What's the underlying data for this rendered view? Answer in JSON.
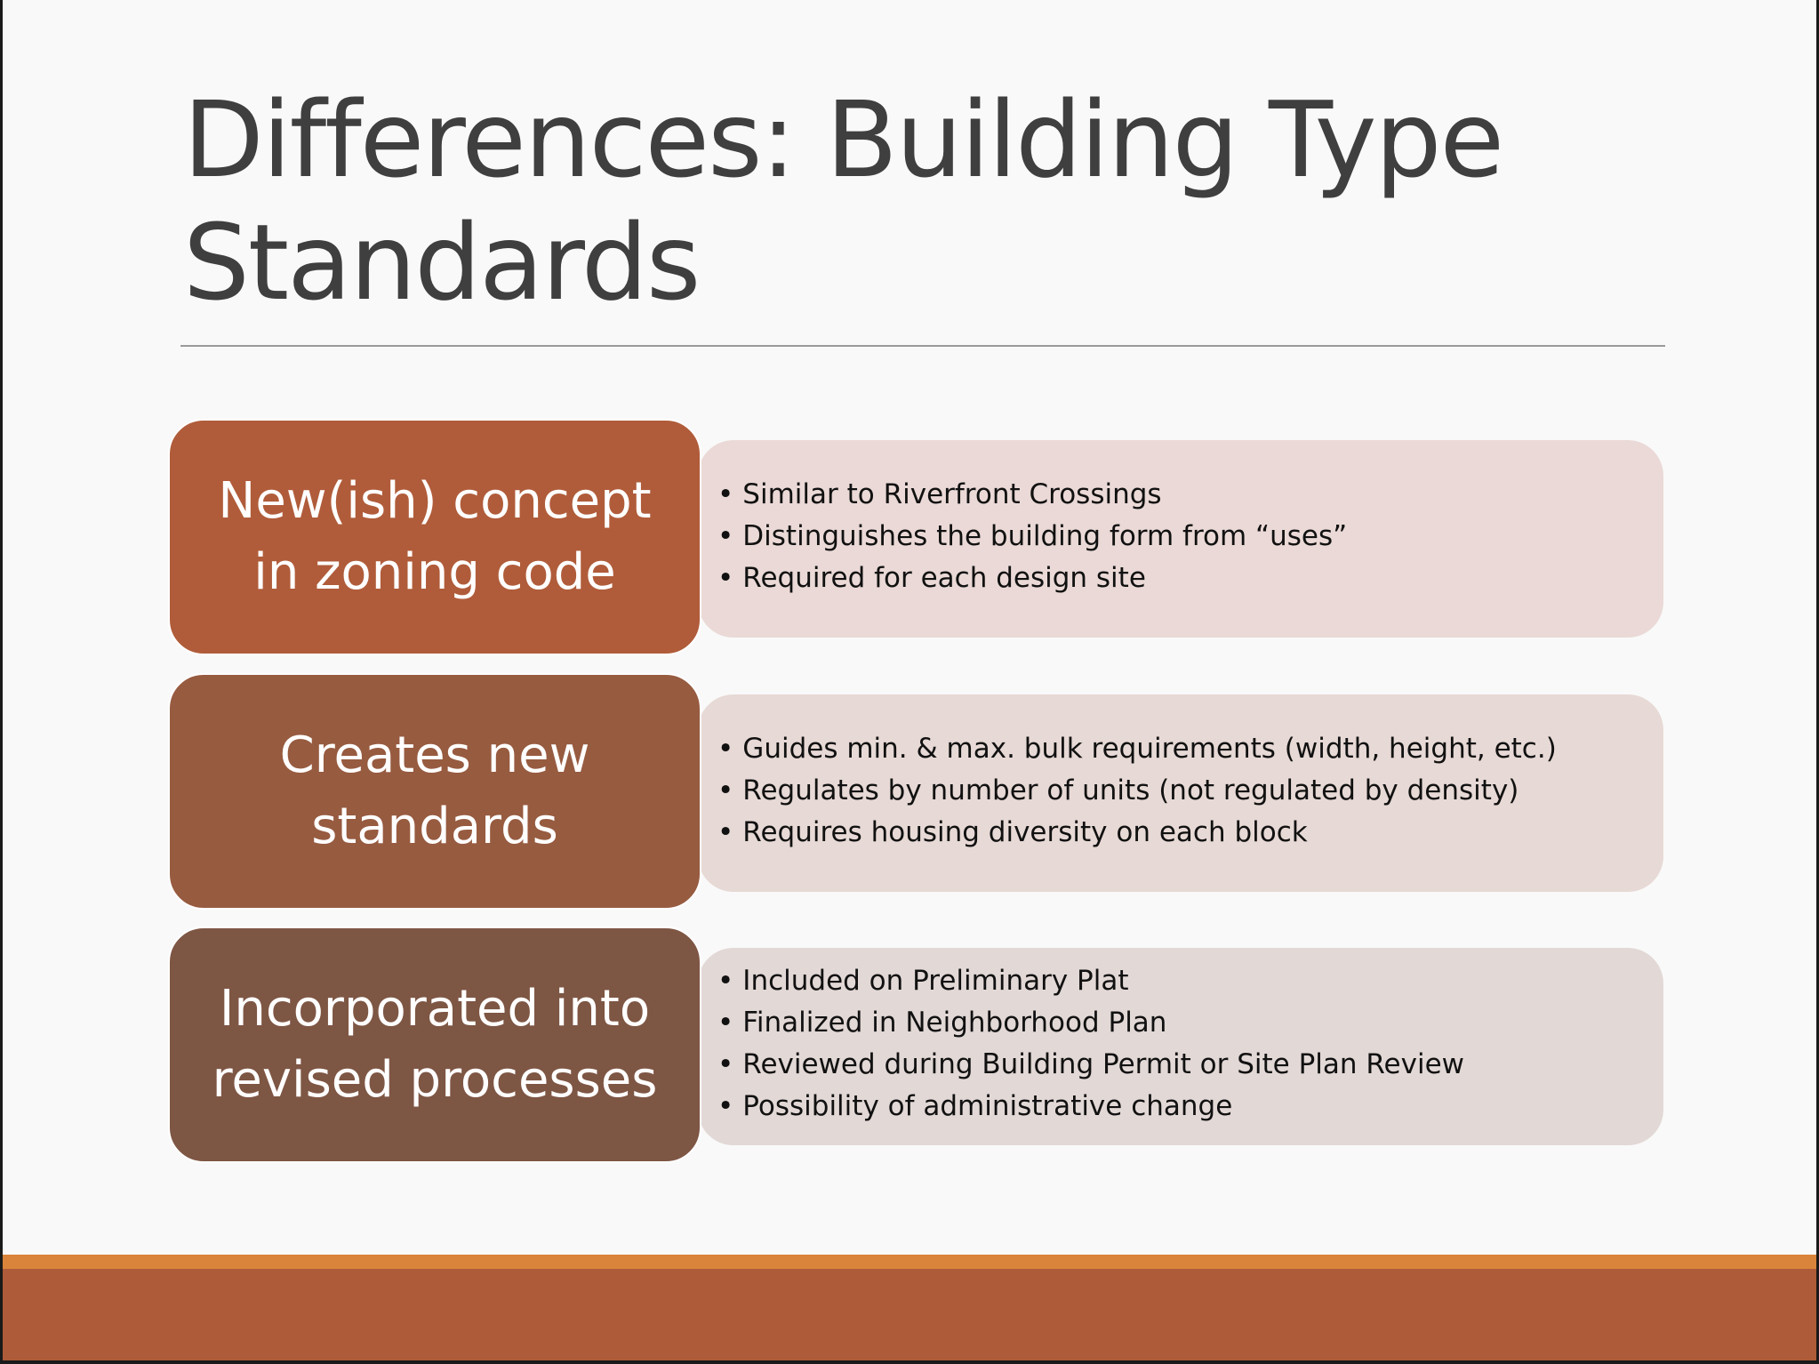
{
  "slide": {
    "title": "Differences: Building Type Standards",
    "rows": [
      {
        "label": "New(ish) concept in zoning code",
        "bullets": [
          "Similar to Riverfront Crossings",
          "Distinguishes the building form from “uses”",
          "Required for each design site"
        ]
      },
      {
        "label": "Creates new standards",
        "bullets": [
          "Guides min. & max. bulk requirements (width, height, etc.)",
          "Regulates by number of units (not regulated by density)",
          "Requires housing diversity on each block"
        ]
      },
      {
        "label": "Incorporated into revised processes",
        "bullets": [
          "Included on Preliminary Plat",
          "Finalized in Neighborhood Plan",
          "Reviewed during Building Permit or Site Plan Review",
          "Possibility of administrative change"
        ]
      }
    ]
  },
  "colors": {
    "title_text": "#3f3f3f",
    "row_1_block": "#b05c3a",
    "row_2_block": "#975b40",
    "row_3_block": "#7e5644",
    "footer_accent": "#d9843a",
    "footer_band": "#ad5b39"
  }
}
